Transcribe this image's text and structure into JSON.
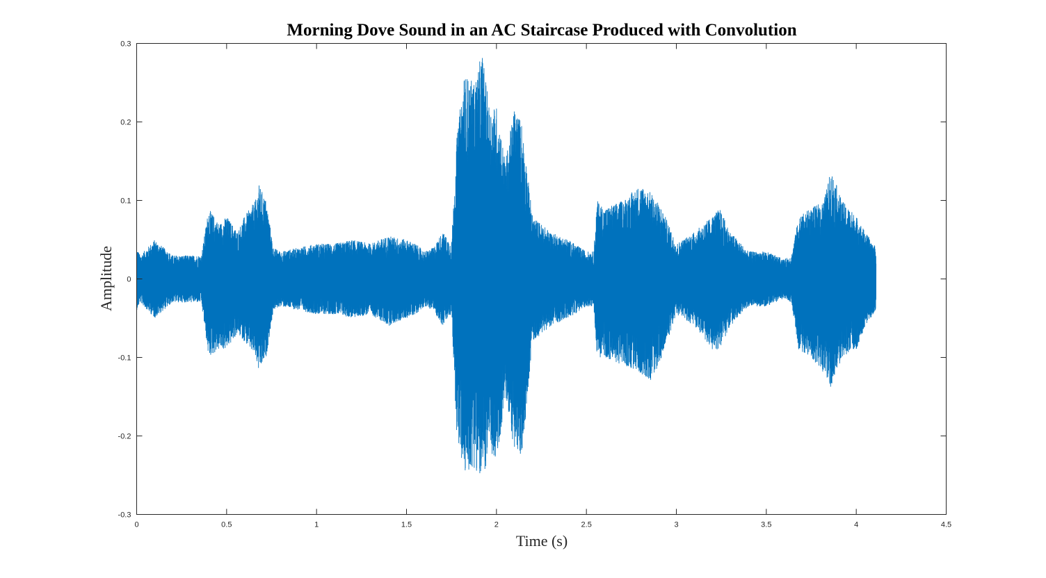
{
  "chart_data": {
    "type": "line",
    "title": "Morning Dove Sound in an AC Staircase Produced with Convolution",
    "xlabel": "Time (s)",
    "ylabel": "Amplitude",
    "xlim": [
      0,
      4.5
    ],
    "ylim": [
      -0.3,
      0.3
    ],
    "xticks": [
      0,
      0.5,
      1,
      1.5,
      2,
      2.5,
      3,
      3.5,
      4,
      4.5
    ],
    "xtick_labels": [
      "0",
      "0.5",
      "1",
      "1.5",
      "2",
      "2.5",
      "3",
      "3.5",
      "4",
      "4.5"
    ],
    "yticks": [
      -0.3,
      -0.2,
      -0.1,
      0,
      0.1,
      0.2,
      0.3
    ],
    "ytick_labels": [
      "-0.3",
      "-0.2",
      "-0.1",
      "0",
      "0.1",
      "0.2",
      "0.3"
    ],
    "grid": false,
    "line_color": "#0072BD",
    "duration": 4.11,
    "series": [
      {
        "envelope": {
          "t": [
            0.0,
            0.02,
            0.1,
            0.2,
            0.3,
            0.36,
            0.4,
            0.46,
            0.5,
            0.56,
            0.6,
            0.66,
            0.68,
            0.72,
            0.76,
            0.8,
            0.9,
            1.0,
            1.05,
            1.1,
            1.2,
            1.3,
            1.4,
            1.5,
            1.55,
            1.6,
            1.65,
            1.7,
            1.75,
            1.78,
            1.82,
            1.88,
            1.92,
            1.96,
            2.0,
            2.05,
            2.1,
            2.14,
            2.2,
            2.3,
            2.4,
            2.5,
            2.54,
            2.56,
            2.6,
            2.7,
            2.8,
            2.86,
            2.92,
            3.0,
            3.1,
            3.2,
            3.24,
            3.3,
            3.4,
            3.5,
            3.6,
            3.64,
            3.68,
            3.75,
            3.82,
            3.86,
            3.92,
            4.0,
            4.05,
            4.11
          ],
          "upper": [
            0.04,
            0.03,
            0.05,
            0.03,
            0.03,
            0.03,
            0.09,
            0.07,
            0.08,
            0.06,
            0.08,
            0.1,
            0.12,
            0.1,
            0.04,
            0.035,
            0.04,
            0.045,
            0.045,
            0.045,
            0.05,
            0.045,
            0.055,
            0.05,
            0.045,
            0.035,
            0.04,
            0.06,
            0.045,
            0.18,
            0.26,
            0.25,
            0.29,
            0.22,
            0.22,
            0.15,
            0.22,
            0.2,
            0.08,
            0.06,
            0.05,
            0.035,
            0.035,
            0.1,
            0.09,
            0.1,
            0.12,
            0.11,
            0.09,
            0.045,
            0.06,
            0.08,
            0.09,
            0.06,
            0.035,
            0.035,
            0.025,
            0.03,
            0.08,
            0.09,
            0.1,
            0.14,
            0.1,
            0.08,
            0.06,
            0.04
          ],
          "lower": [
            -0.04,
            -0.03,
            -0.05,
            -0.03,
            -0.03,
            -0.03,
            -0.1,
            -0.09,
            -0.09,
            -0.07,
            -0.08,
            -0.1,
            -0.12,
            -0.1,
            -0.04,
            -0.035,
            -0.04,
            -0.045,
            -0.045,
            -0.045,
            -0.05,
            -0.045,
            -0.06,
            -0.05,
            -0.045,
            -0.035,
            -0.04,
            -0.06,
            -0.045,
            -0.2,
            -0.25,
            -0.24,
            -0.26,
            -0.22,
            -0.24,
            -0.15,
            -0.22,
            -0.23,
            -0.08,
            -0.06,
            -0.05,
            -0.035,
            -0.035,
            -0.1,
            -0.1,
            -0.11,
            -0.12,
            -0.13,
            -0.1,
            -0.045,
            -0.06,
            -0.09,
            -0.09,
            -0.06,
            -0.035,
            -0.035,
            -0.025,
            -0.03,
            -0.09,
            -0.1,
            -0.12,
            -0.14,
            -0.1,
            -0.09,
            -0.06,
            -0.04
          ]
        }
      }
    ]
  }
}
